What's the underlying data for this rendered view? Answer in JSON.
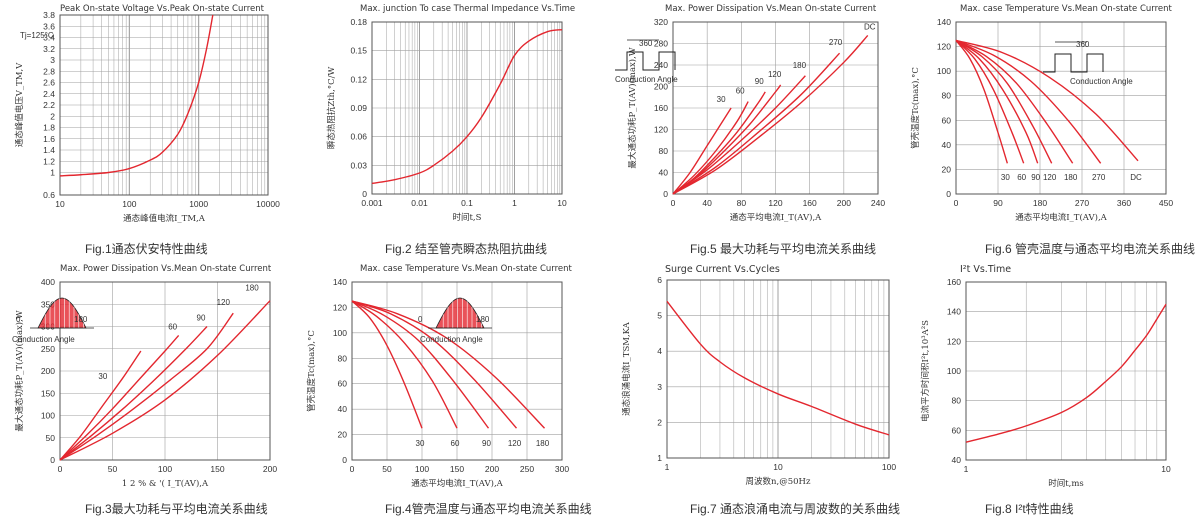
{
  "panels": [
    {
      "id": "p1",
      "title": "Peak On-state Voltage Vs.Peak On-state Current",
      "caption": "Fig.1通态伏安特性曲线",
      "chart_data": {
        "type": "line",
        "title": "Peak On-state Voltage Vs.Peak On-state Current",
        "xlabel": "通态峰值电流I_TM,A",
        "ylabel": "通态峰值电压V_TM,V",
        "xscale": "log",
        "xlim": [
          10,
          10000
        ],
        "ylim": [
          0.6,
          3.8
        ],
        "xticks": [
          "10",
          "100",
          "1000",
          "10000"
        ],
        "yticks": [
          "0.6",
          "1",
          "1.2",
          "1.4",
          "1.6",
          "1.8",
          "2",
          "2.2",
          "2.4",
          "2.6",
          "2.8",
          "3",
          "3.2",
          "3.4",
          "3.6",
          "3.8"
        ],
        "annotations": [
          "Tj=125°C"
        ],
        "series": [
          {
            "x": [
              10,
              20,
              50,
              100,
              200,
              300,
              500,
              700,
              1000,
              1300,
              1600
            ],
            "y": [
              0.94,
              0.96,
              1.0,
              1.07,
              1.22,
              1.36,
              1.68,
              2.05,
              2.6,
              3.2,
              3.8
            ]
          }
        ]
      }
    },
    {
      "id": "p2",
      "title": "Max. junction To case Thermal Impedance Vs.Time",
      "caption": "Fig.2 结至管壳瞬态热阻抗曲线",
      "chart_data": {
        "type": "line",
        "title": "Max. junction To case Thermal Impedance Vs.Time",
        "xlabel": "时间t,S",
        "ylabel": "瞬态热阻抗Zth,°C/W",
        "xscale": "log",
        "xlim": [
          0.001,
          10
        ],
        "ylim": [
          0,
          0.18
        ],
        "xticks": [
          "0.001",
          "0.01",
          "0.1",
          "1",
          "10"
        ],
        "yticks": [
          "0",
          "0.03",
          "0.06",
          "0.09",
          "0.12",
          "0.15",
          "0.18"
        ],
        "series": [
          {
            "x": [
              0.001,
              0.003,
              0.01,
              0.02,
              0.05,
              0.1,
              0.2,
              0.5,
              1,
              2,
              5,
              10
            ],
            "y": [
              0.011,
              0.015,
              0.022,
              0.03,
              0.045,
              0.06,
              0.08,
              0.115,
              0.145,
              0.16,
              0.17,
              0.172
            ]
          }
        ]
      }
    },
    {
      "id": "p3",
      "title": "Max. Power Dissipation Vs.Mean On-state Current",
      "caption": "Fig.5 最大功耗与平均电流关系曲线",
      "chart_data": {
        "type": "line",
        "title": "Max. Power Dissipation Vs.Mean On-state Current",
        "xlabel": "通态平均电流I_T(AV),A",
        "ylabel": "最大通态功耗P_T(AV)(max),W",
        "xlim": [
          0,
          240
        ],
        "ylim": [
          0,
          320
        ],
        "xticks": [
          "0",
          "40",
          "80",
          "120",
          "160",
          "200",
          "240"
        ],
        "yticks": [
          "0",
          "40",
          "80",
          "120",
          "160",
          "200",
          "240",
          "280",
          "320"
        ],
        "annotations": [
          "360",
          "Conduction Angle"
        ],
        "series": [
          {
            "name": "30",
            "x": [
              0,
              20,
              40,
              60,
              68
            ],
            "y": [
              0,
              40,
              90,
              140,
              160
            ]
          },
          {
            "name": "60",
            "x": [
              0,
              25,
              50,
              75,
              88
            ],
            "y": [
              0,
              35,
              80,
              135,
              172
            ]
          },
          {
            "name": "90",
            "x": [
              0,
              25,
              50,
              75,
              100,
              108
            ],
            "y": [
              0,
              30,
              70,
              115,
              170,
              190
            ]
          },
          {
            "name": "120",
            "x": [
              0,
              30,
              60,
              90,
              120,
              126
            ],
            "y": [
              0,
              35,
              80,
              130,
              190,
              203
            ]
          },
          {
            "name": "180",
            "x": [
              0,
              40,
              80,
              120,
              155
            ],
            "y": [
              0,
              45,
              100,
              160,
              220
            ]
          },
          {
            "name": "270",
            "x": [
              0,
              50,
              100,
              150,
              195
            ],
            "y": [
              0,
              50,
              115,
              185,
              262
            ]
          },
          {
            "name": "DC",
            "x": [
              0,
              50,
              100,
              150,
              200,
              228
            ],
            "y": [
              0,
              45,
              105,
              170,
              245,
              295
            ]
          }
        ]
      }
    },
    {
      "id": "p4",
      "title": "Max. case Temperature Vs.Mean On-state Current",
      "caption": "Fig.6 管壳温度与通态平均电流关系曲线",
      "chart_data": {
        "type": "line",
        "title": "Max. case Temperature Vs.Mean On-state Current",
        "xlabel": "通态平均电流I_T(AV),A",
        "ylabel": "管壳温度Tc(max),°C",
        "xlim": [
          0,
          450
        ],
        "ylim": [
          0,
          140
        ],
        "xticks": [
          "0",
          "90",
          "180",
          "270",
          "360",
          "450"
        ],
        "yticks": [
          "0",
          "20",
          "40",
          "60",
          "80",
          "100",
          "120",
          "140"
        ],
        "annotations": [
          "360",
          "Conduction Angle"
        ],
        "series": [
          {
            "name": "30",
            "x": [
              0,
              30,
              60,
              90,
              110
            ],
            "y": [
              125,
              110,
              85,
              50,
              25
            ]
          },
          {
            "name": "60",
            "x": [
              0,
              40,
              80,
              120,
              145
            ],
            "y": [
              125,
              110,
              85,
              50,
              25
            ]
          },
          {
            "name": "90",
            "x": [
              0,
              50,
              100,
              150,
              175
            ],
            "y": [
              125,
              110,
              85,
              50,
              25
            ]
          },
          {
            "name": "120",
            "x": [
              0,
              55,
              110,
              165,
              205
            ],
            "y": [
              125,
              112,
              90,
              55,
              25
            ]
          },
          {
            "name": "180",
            "x": [
              0,
              65,
              130,
              195,
              250
            ],
            "y": [
              125,
              112,
              90,
              57,
              25
            ]
          },
          {
            "name": "270",
            "x": [
              0,
              80,
              160,
              240,
              310
            ],
            "y": [
              125,
              113,
              92,
              60,
              25
            ]
          },
          {
            "name": "DC",
            "x": [
              0,
              100,
              200,
              300,
              390
            ],
            "y": [
              125,
              115,
              95,
              65,
              27
            ]
          }
        ]
      }
    },
    {
      "id": "p5",
      "title": "Max. Power Dissipation Vs.Mean On-state Current",
      "caption": "Fig.3最大功耗与平均电流关系曲线",
      "chart_data": {
        "type": "line",
        "title": "Max. Power Dissipation Vs.Mean On-state Current",
        "xlabel": "1 2 % & '( I_T(AV),A",
        "ylabel": "最大通态功耗P_T(AV)(max),W",
        "xlim": [
          0,
          200
        ],
        "ylim": [
          0,
          400
        ],
        "xticks": [
          "0",
          "50",
          "100",
          "150",
          "200"
        ],
        "yticks": [
          "0",
          "50",
          "100",
          "150",
          "200",
          "250",
          "300",
          "350",
          "400"
        ],
        "annotations": [
          "0",
          "180",
          "Conduction Angle"
        ],
        "series": [
          {
            "name": "30",
            "x": [
              0,
              20,
              40,
              60,
              77
            ],
            "y": [
              0,
              55,
              120,
              185,
              245
            ]
          },
          {
            "name": "60",
            "x": [
              0,
              25,
              50,
              75,
              100,
              113
            ],
            "y": [
              0,
              55,
              115,
              180,
              245,
              280
            ]
          },
          {
            "name": "90",
            "x": [
              0,
              30,
              60,
              90,
              120,
              140
            ],
            "y": [
              0,
              55,
              115,
              180,
              250,
              300
            ]
          },
          {
            "name": "120",
            "x": [
              0,
              35,
              70,
              105,
              140,
              165
            ],
            "y": [
              0,
              55,
              115,
              180,
              250,
              330
            ]
          },
          {
            "name": "180",
            "x": [
              0,
              50,
              100,
              150,
              200
            ],
            "y": [
              0,
              60,
              135,
              235,
              358
            ]
          }
        ]
      }
    },
    {
      "id": "p6",
      "title": "Max. case Temperature Vs.Mean On-state Current",
      "caption": "Fig.4管壳温度与通态平均电流关系曲线",
      "chart_data": {
        "type": "line",
        "title": "Max. case Temperature Vs.Mean On-state Current",
        "xlabel": "通态平均电流I_T(AV),A",
        "ylabel": "管壳温度Tc(max),°C",
        "xlim": [
          0,
          300
        ],
        "ylim": [
          0,
          140
        ],
        "xticks": [
          "0",
          "50",
          "100",
          "150",
          "200",
          "250",
          "300"
        ],
        "yticks": [
          "0",
          "20",
          "40",
          "60",
          "80",
          "100",
          "120",
          "140"
        ],
        "annotations": [
          "0",
          "180",
          "Conduction Angle"
        ],
        "series": [
          {
            "name": "30",
            "x": [
              0,
              25,
              50,
              75,
              100
            ],
            "y": [
              125,
              112,
              90,
              60,
              25
            ]
          },
          {
            "name": "60",
            "x": [
              0,
              35,
              75,
              115,
              150
            ],
            "y": [
              125,
              113,
              92,
              62,
              25
            ]
          },
          {
            "name": "90",
            "x": [
              0,
              45,
              95,
              145,
              195
            ],
            "y": [
              125,
              114,
              94,
              62,
              25
            ]
          },
          {
            "name": "120",
            "x": [
              0,
              55,
              115,
              175,
              235
            ],
            "y": [
              125,
              115,
              95,
              63,
              25
            ]
          },
          {
            "name": "180",
            "x": [
              0,
              65,
              135,
              205,
              275
            ],
            "y": [
              125,
              115,
              96,
              65,
              25
            ]
          }
        ]
      }
    },
    {
      "id": "p7",
      "title": "Surge Current Vs.Cycles",
      "caption": "Fig.7 通态浪涌电流与周波数的关系曲线",
      "chart_data": {
        "type": "line",
        "title": "Surge Current Vs.Cycles",
        "xlabel": "周波数n,@50Hz",
        "ylabel": "通态浪涌电流I_TSM,KA",
        "xscale": "log",
        "xlim": [
          1,
          100
        ],
        "ylim": [
          1,
          6
        ],
        "xticks": [
          "1",
          "10",
          "100"
        ],
        "yticks": [
          "1",
          "2",
          "3",
          "4",
          "5",
          "6"
        ],
        "series": [
          {
            "x": [
              1,
              2,
              3,
              5,
              10,
              20,
              50,
              100
            ],
            "y": [
              5.4,
              4.2,
              3.7,
              3.25,
              2.8,
              2.45,
              1.95,
              1.65
            ]
          }
        ]
      }
    },
    {
      "id": "p8",
      "title": "I²t Vs.Time",
      "caption": "Fig.8 I²t特性曲线",
      "chart_data": {
        "type": "line",
        "title": "I²t Vs.Time",
        "xlabel": "时间t,ms",
        "ylabel": "电流平方时间积I²t,10³A²S",
        "xscale": "log",
        "xlim": [
          1,
          10
        ],
        "ylim": [
          40,
          160
        ],
        "xticks": [
          "1",
          "10"
        ],
        "yticks": [
          "40",
          "60",
          "80",
          "100",
          "120",
          "140",
          "160"
        ],
        "series": [
          {
            "x": [
              1,
              1.5,
              2,
              3,
              4,
              5,
              6,
              7,
              8,
              9,
              10
            ],
            "y": [
              52,
              58,
              63,
              72,
              82,
              93,
              103,
              114,
              124,
              135,
              145
            ]
          }
        ]
      }
    }
  ],
  "style": {
    "curve": "#e3272f",
    "grid": "#a0a0a0",
    "axis": "#555555"
  }
}
